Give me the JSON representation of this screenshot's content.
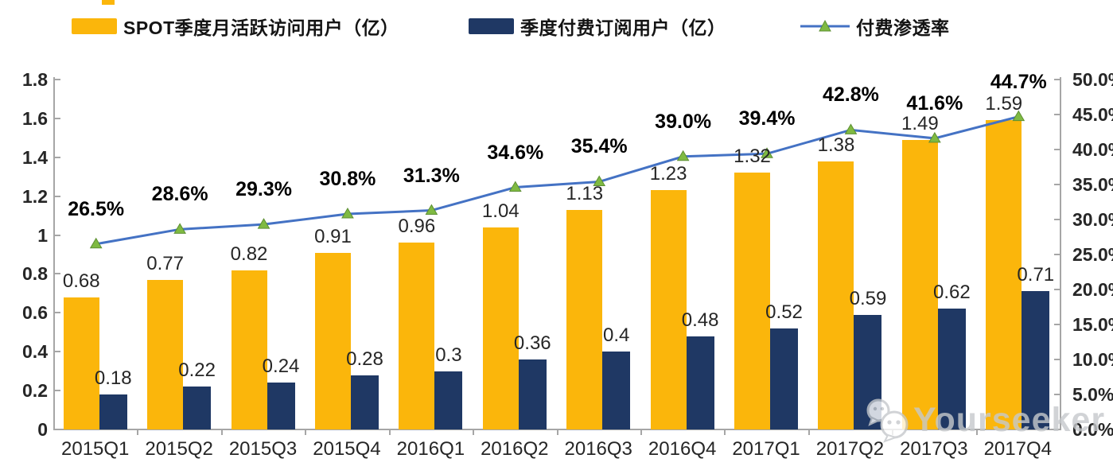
{
  "legend": [
    {
      "label": "SPOT季度月活跃访问用户（亿）",
      "swatch": "bar",
      "color": "#FBB60B"
    },
    {
      "label": "季度付费订阅用户（亿）",
      "swatch": "bar",
      "color": "#1F3864"
    },
    {
      "label": "付费渗透率",
      "swatch": "line",
      "color": "#4472C4",
      "marker_color": "#7FBA42"
    }
  ],
  "watermark": {
    "text": "Yourseeker",
    "icon": "chat-bubbles-icon"
  },
  "chart_data": {
    "type": "combo",
    "legend_position": "top",
    "grid": false,
    "categories": [
      "2015Q1",
      "2015Q2",
      "2015Q3",
      "2015Q4",
      "2016Q1",
      "2016Q2",
      "2016Q3",
      "2016Q4",
      "2017Q1",
      "2017Q2",
      "2017Q3",
      "2017Q4"
    ],
    "series": [
      {
        "name": "SPOT季度月活跃访问用户（亿）",
        "type": "bar",
        "axis": "left",
        "color": "#FBB60B",
        "values": [
          0.68,
          0.77,
          0.82,
          0.91,
          0.96,
          1.04,
          1.13,
          1.23,
          1.32,
          1.38,
          1.49,
          1.59
        ],
        "labels": [
          "0.68",
          "0.77",
          "0.82",
          "0.91",
          "0.96",
          "1.04",
          "1.13",
          "1.23",
          "1.32",
          "1.38",
          "1.49",
          "1.59"
        ]
      },
      {
        "name": "季度付费订阅用户（亿）",
        "type": "bar",
        "axis": "left",
        "color": "#1F3864",
        "values": [
          0.18,
          0.22,
          0.24,
          0.28,
          0.3,
          0.36,
          0.4,
          0.48,
          0.52,
          0.59,
          0.62,
          0.71
        ],
        "labels": [
          "0.18",
          "0.22",
          "0.24",
          "0.28",
          "0.3",
          "0.36",
          "0.4",
          "0.48",
          "0.52",
          "0.59",
          "0.62",
          "0.71"
        ]
      },
      {
        "name": "付费渗透率",
        "type": "line",
        "axis": "right",
        "color": "#4472C4",
        "marker": "triangle",
        "marker_color": "#7FBA42",
        "values": [
          26.5,
          28.6,
          29.3,
          30.8,
          31.3,
          34.6,
          35.4,
          39.0,
          39.4,
          42.8,
          41.6,
          44.7
        ],
        "labels": [
          "26.5%",
          "28.6%",
          "29.3%",
          "30.8%",
          "31.3%",
          "34.6%",
          "35.4%",
          "39.0%",
          "39.4%",
          "42.8%",
          "41.6%",
          "44.7%"
        ]
      }
    ],
    "left_axis": {
      "min": 0,
      "max": 1.8,
      "tick_labels": [
        "1.8",
        "1.6",
        "1.4",
        "1.2",
        "1",
        "0.8",
        "0.6",
        "0.4",
        "0.2",
        "0"
      ]
    },
    "right_axis": {
      "min": 0,
      "max": 50,
      "tick_labels": [
        "50.0%",
        "45.0%",
        "40.0%",
        "35.0%",
        "30.0%",
        "25.0%",
        "20.0%",
        "15.0%",
        "10.0%",
        "5.0%",
        "0.0%"
      ]
    }
  }
}
